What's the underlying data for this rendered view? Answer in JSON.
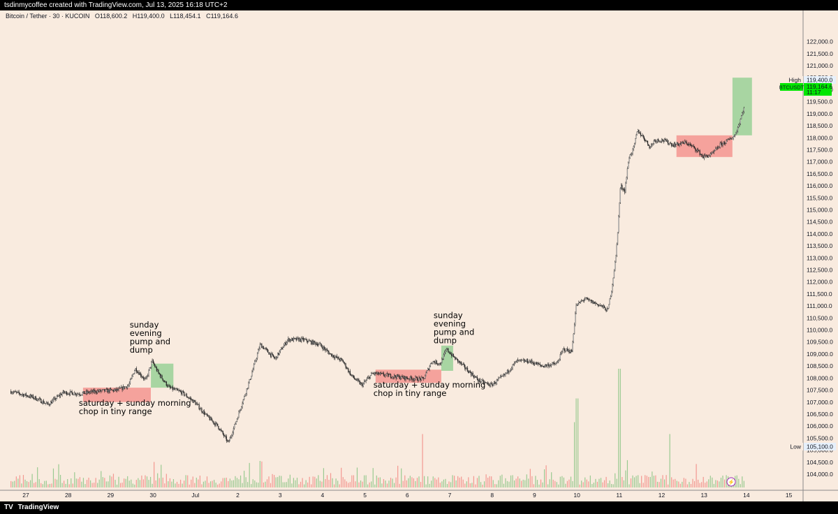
{
  "header": {
    "credit": "tsdinmycoffee created with TradingView.com, Jul 13, 2025 16:18 UTC+2"
  },
  "legend": {
    "symbol": "Bitcoin / Tether · 30 · KUCOIN",
    "open": "O118,600.2",
    "high": "H119,400.0",
    "low": "L118,454.1",
    "close": "C119,164.6"
  },
  "markers": {
    "high_label": "High",
    "high_value": "119,400.0",
    "ticker": "BTCUSDT",
    "last_price": "119,164.6",
    "countdown": "11:17",
    "low_label": "Low",
    "low_value": "105,100.0"
  },
  "footer": {
    "brand": "TradingView"
  },
  "colors": {
    "background": "#f9ebdf",
    "up": "#4caf50",
    "down": "#ef5350",
    "red_box": "#f49a95",
    "green_box": "#9fd39b",
    "price_tag": "#00e600"
  },
  "chart_data": {
    "type": "candlestick",
    "y_ticks": [
      104000,
      104500,
      105000,
      105500,
      106000,
      106500,
      107000,
      107500,
      108000,
      108500,
      109000,
      109500,
      110000,
      110500,
      111000,
      111500,
      112000,
      112500,
      113000,
      113500,
      114000,
      114500,
      115000,
      115500,
      116000,
      116500,
      117000,
      117500,
      118000,
      118500,
      119000,
      119500,
      120000,
      120500,
      121000,
      121500,
      122000
    ],
    "x_ticks": [
      {
        "label": "27",
        "day": 0
      },
      {
        "label": "28",
        "day": 1
      },
      {
        "label": "29",
        "day": 2
      },
      {
        "label": "30",
        "day": 3
      },
      {
        "label": "Jul",
        "day": 4
      },
      {
        "label": "2",
        "day": 5
      },
      {
        "label": "3",
        "day": 6
      },
      {
        "label": "4",
        "day": 7
      },
      {
        "label": "5",
        "day": 8
      },
      {
        "label": "6",
        "day": 9
      },
      {
        "label": "7",
        "day": 10
      },
      {
        "label": "8",
        "day": 11
      },
      {
        "label": "9",
        "day": 12
      },
      {
        "label": "10",
        "day": 13
      },
      {
        "label": "11",
        "day": 14
      },
      {
        "label": "12",
        "day": 15
      },
      {
        "label": "13",
        "day": 16
      },
      {
        "label": "14",
        "day": 17
      },
      {
        "label": "15",
        "day": 18
      }
    ],
    "price_path": [
      [
        -0.35,
        107450
      ],
      [
        0.2,
        107200
      ],
      [
        0.55,
        106900
      ],
      [
        0.9,
        107400
      ],
      [
        1.3,
        107350
      ],
      [
        1.7,
        107450
      ],
      [
        2.2,
        107500
      ],
      [
        2.45,
        107700
      ],
      [
        2.6,
        108400
      ],
      [
        2.85,
        107900
      ],
      [
        3.0,
        108700
      ],
      [
        3.15,
        108200
      ],
      [
        3.4,
        107600
      ],
      [
        3.7,
        107400
      ],
      [
        4.0,
        107000
      ],
      [
        4.3,
        106400
      ],
      [
        4.55,
        106000
      ],
      [
        4.8,
        105300
      ],
      [
        5.0,
        106300
      ],
      [
        5.3,
        107900
      ],
      [
        5.55,
        109400
      ],
      [
        5.9,
        108800
      ],
      [
        6.2,
        109600
      ],
      [
        6.55,
        109600
      ],
      [
        6.95,
        109400
      ],
      [
        7.2,
        109000
      ],
      [
        7.5,
        108700
      ],
      [
        7.7,
        108100
      ],
      [
        7.95,
        107700
      ],
      [
        8.2,
        108200
      ],
      [
        8.6,
        108100
      ],
      [
        9.0,
        108000
      ],
      [
        9.4,
        107950
      ],
      [
        9.6,
        108700
      ],
      [
        9.8,
        108600
      ],
      [
        9.95,
        109200
      ],
      [
        10.1,
        108900
      ],
      [
        10.4,
        108400
      ],
      [
        10.7,
        107900
      ],
      [
        11.0,
        107700
      ],
      [
        11.3,
        108100
      ],
      [
        11.6,
        108700
      ],
      [
        11.9,
        108700
      ],
      [
        12.2,
        108500
      ],
      [
        12.55,
        108600
      ],
      [
        12.7,
        109200
      ],
      [
        12.9,
        109100
      ],
      [
        13.0,
        111000
      ],
      [
        13.2,
        111300
      ],
      [
        13.6,
        111000
      ],
      [
        13.75,
        110800
      ],
      [
        13.85,
        111800
      ],
      [
        13.95,
        113200
      ],
      [
        14.05,
        116000
      ],
      [
        14.15,
        115800
      ],
      [
        14.25,
        117200
      ],
      [
        14.35,
        117500
      ],
      [
        14.45,
        118300
      ],
      [
        14.6,
        118000
      ],
      [
        14.75,
        117600
      ],
      [
        14.85,
        117900
      ],
      [
        15.05,
        117900
      ],
      [
        15.3,
        117700
      ],
      [
        15.6,
        117800
      ],
      [
        15.85,
        117500
      ],
      [
        16.0,
        117200
      ],
      [
        16.2,
        117300
      ],
      [
        16.4,
        117700
      ],
      [
        16.6,
        117900
      ],
      [
        16.75,
        118100
      ],
      [
        16.85,
        118600
      ],
      [
        16.95,
        119200
      ]
    ],
    "boxes": [
      {
        "color": "red",
        "d0": 1.35,
        "d1": 2.95,
        "p0": 107000,
        "p1": 107600
      },
      {
        "color": "green",
        "d0": 2.95,
        "d1": 3.48,
        "p0": 107600,
        "p1": 108600
      },
      {
        "color": "red",
        "d0": 8.25,
        "d1": 9.8,
        "p0": 107800,
        "p1": 108350
      },
      {
        "color": "green",
        "d0": 9.8,
        "d1": 10.08,
        "p0": 108300,
        "p1": 109350
      },
      {
        "color": "red",
        "d0": 15.35,
        "d1": 16.67,
        "p0": 117200,
        "p1": 118100
      },
      {
        "color": "green",
        "d0": 16.67,
        "d1": 17.13,
        "p0": 118100,
        "p1": 120500
      }
    ],
    "annotations": [
      {
        "lines": [
          "saturday + sunday morning",
          "chop in tiny range"
        ],
        "day": 1.25,
        "price": 106850
      },
      {
        "lines": [
          "sunday",
          "evening",
          "pump and",
          "dump"
        ],
        "day": 2.45,
        "price": 110100
      },
      {
        "lines": [
          "saturday + sunday morning",
          "chop in tiny range"
        ],
        "day": 8.2,
        "price": 107600
      },
      {
        "lines": [
          "sunday",
          "evening",
          "pump and",
          "dump"
        ],
        "day": 9.62,
        "price": 110500
      }
    ],
    "volume_spikes": [
      {
        "day": 13.0,
        "rel": 0.75
      },
      {
        "day": 14.0,
        "rel": 1.0
      },
      {
        "day": 9.35,
        "rel": 0.45
      },
      {
        "day": 12.95,
        "rel": 0.55
      },
      {
        "day": 15.2,
        "rel": 0.45
      }
    ]
  }
}
